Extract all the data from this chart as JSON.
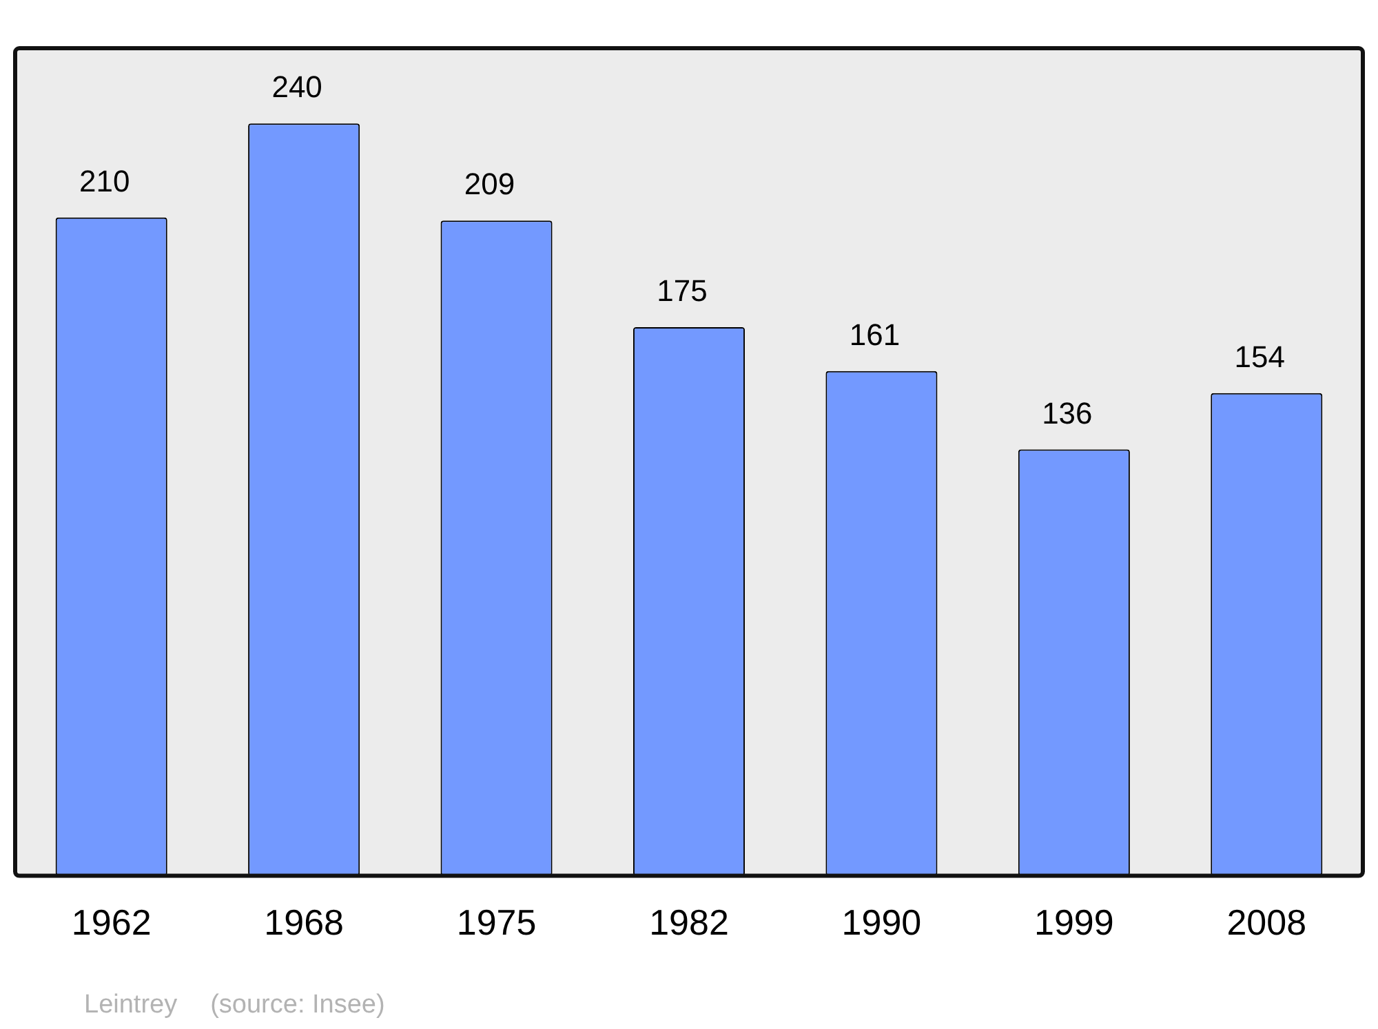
{
  "chart_data": {
    "type": "bar",
    "categories": [
      "1962",
      "1968",
      "1975",
      "1982",
      "1990",
      "1999",
      "2008"
    ],
    "values": [
      210,
      240,
      209,
      175,
      161,
      136,
      154
    ],
    "color": "#7399ff",
    "data_labels": true,
    "ylim": [
      0,
      264
    ],
    "tick_labels": "x",
    "grid": false,
    "legend": false,
    "annotations": [
      "Leintrey",
      "(source: Insee)"
    ]
  }
}
